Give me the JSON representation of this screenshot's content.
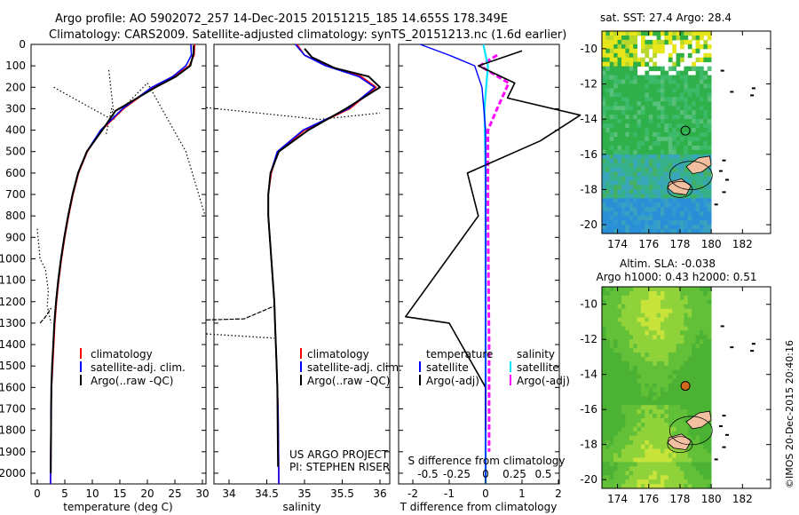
{
  "title": {
    "line1": "Argo profile: AO 5902072_257 14-Dec-2015 20151215_185 14.655S 178.349E",
    "line2": "Climatology: CARS2009. Satellite-adjusted climatology: synTS_20151213.nc (1.6d earlier)"
  },
  "colors": {
    "climatology": "#ff0000",
    "satellite": "#0000ff",
    "argo": "#000000",
    "sal_sat": "#00e5ff",
    "sal_argo": "#ff00ff"
  },
  "depth_axis": {
    "ticks": [
      "0",
      "100",
      "200",
      "300",
      "400",
      "500",
      "600",
      "700",
      "800",
      "900",
      "1000",
      "1100",
      "1200",
      "1300",
      "1400",
      "1500",
      "1600",
      "1700",
      "1800",
      "1900",
      "2000"
    ],
    "range": [
      0,
      2050
    ]
  },
  "temperature_panel": {
    "xlabel": "temperature (deg C)",
    "xticks": [
      "0",
      "5",
      "10",
      "15",
      "20",
      "25",
      "30"
    ],
    "legend": [
      "climatology",
      "satellite-adj. clim.",
      "Argo(..raw -QC)"
    ]
  },
  "salinity_panel": {
    "xlabel": "salinity",
    "xticks": [
      "34",
      "34.5",
      "35",
      "35.5",
      "36"
    ],
    "legend": [
      "climatology",
      "satellite-adj. clim.",
      "Argo(..raw -QC)"
    ],
    "note1": "US ARGO PROJECT",
    "note2": "PI: STEPHEN RISER"
  },
  "difference_panel": {
    "legend_temp_title": "temperature",
    "legend_sal_title": "salinity",
    "legend_temp": [
      "satellite",
      "Argo(-adj)"
    ],
    "legend_sal": [
      "satellite",
      "Argo(-adj)"
    ],
    "s_label": "S difference from climatology",
    "s_ticks": [
      "-0.5",
      "-0.25",
      "0",
      "0.25",
      "0.5"
    ],
    "t_label": "T difference from climatology",
    "t_ticks": [
      "-2",
      "-1",
      "0",
      "1",
      "2"
    ]
  },
  "map_top": {
    "title": "sat. SST: 27.4 Argo: 28.4",
    "yticks": [
      "-10",
      "-12",
      "-14",
      "-16",
      "-18",
      "-20"
    ],
    "xticks": [
      "174",
      "176",
      "178",
      "180",
      "182"
    ]
  },
  "map_bottom": {
    "title1": "Altim. SLA: -0.038",
    "title2": "Argo h1000: 0.43 h2000: 0.51",
    "yticks": [
      "-10",
      "-12",
      "-14",
      "-16",
      "-18",
      "-20"
    ],
    "xticks": [
      "174",
      "176",
      "178",
      "180",
      "182"
    ]
  },
  "stamp": "©IMOS 20-Dec-2015 20:40:16",
  "chart_data": [
    {
      "type": "line",
      "title": "",
      "xlabel": "temperature (deg C)",
      "ylabel": "",
      "xlim": [
        -2,
        32
      ],
      "ylim": [
        2050,
        0
      ],
      "series": [
        {
          "name": "climatology",
          "x": [
            28.6,
            28.5,
            27.6,
            24.8,
            21.0,
            15.7,
            11.7,
            9.1,
            7.5,
            6.5,
            5.7,
            5.0,
            4.4,
            3.9,
            3.5,
            3.2,
            3.0,
            2.8,
            2.6,
            2.5,
            2.4
          ],
          "y": [
            0,
            50,
            100,
            150,
            200,
            300,
            400,
            500,
            600,
            700,
            800,
            900,
            1000,
            1100,
            1200,
            1300,
            1400,
            1500,
            1600,
            1700,
            2050
          ]
        },
        {
          "name": "satellite-adj. clim.",
          "x": [
            27.9,
            28.0,
            27.0,
            24.6,
            20.8,
            15.5,
            11.5,
            9.0,
            7.4,
            6.4,
            5.6,
            4.9,
            4.3,
            3.8,
            3.4,
            3.1,
            2.9,
            2.7,
            2.6,
            2.5,
            2.4
          ],
          "y": [
            0,
            50,
            100,
            150,
            200,
            300,
            400,
            500,
            600,
            700,
            800,
            900,
            1000,
            1100,
            1200,
            1300,
            1400,
            1500,
            1600,
            1700,
            2050
          ]
        },
        {
          "name": "Argo(..raw -QC)",
          "x": [
            28.4,
            28.4,
            27.8,
            25.2,
            21.5,
            14.2,
            11.8,
            9.0,
            7.4,
            6.4,
            5.6,
            4.9,
            4.3,
            3.8,
            3.4,
            3.1,
            2.9,
            2.7,
            2.55,
            2.45
          ],
          "y": [
            5,
            40,
            100,
            150,
            200,
            310,
            400,
            500,
            600,
            700,
            800,
            900,
            1000,
            1100,
            1200,
            1300,
            1400,
            1500,
            1600,
            2000
          ]
        }
      ]
    },
    {
      "type": "line",
      "title": "",
      "xlabel": "salinity",
      "ylabel": "",
      "xlim": [
        33.7,
        36.15
      ],
      "ylim": [
        2050,
        0
      ],
      "series": [
        {
          "name": "climatology",
          "x": [
            34.9,
            35.0,
            35.3,
            35.75,
            35.95,
            35.6,
            35.0,
            34.65,
            34.56,
            34.52,
            34.52,
            34.54,
            34.56,
            34.58,
            34.6,
            34.61,
            34.62,
            34.63,
            34.64,
            34.65,
            34.66
          ],
          "y": [
            0,
            50,
            100,
            150,
            200,
            300,
            400,
            500,
            600,
            700,
            800,
            900,
            1000,
            1100,
            1200,
            1300,
            1400,
            1500,
            1600,
            1700,
            2050
          ]
        },
        {
          "name": "satellite-adj. clim.",
          "x": [
            34.88,
            35.0,
            35.28,
            35.72,
            35.93,
            35.58,
            34.98,
            34.64,
            34.55,
            34.52,
            34.52,
            34.54,
            34.56,
            34.58,
            34.6,
            34.61,
            34.62,
            34.63,
            34.64,
            34.65,
            34.66
          ],
          "y": [
            0,
            50,
            100,
            150,
            200,
            300,
            400,
            500,
            600,
            700,
            800,
            900,
            1000,
            1100,
            1200,
            1300,
            1400,
            1500,
            1600,
            1700,
            2050
          ]
        },
        {
          "name": "Argo(..raw -QC)",
          "x": [
            35.0,
            35.1,
            35.4,
            35.85,
            36.0,
            35.55,
            35.05,
            34.66,
            34.55,
            34.52,
            34.52,
            34.54,
            34.56,
            34.58,
            34.6,
            34.61,
            34.62,
            34.63,
            34.64,
            34.65
          ],
          "y": [
            20,
            60,
            110,
            150,
            200,
            300,
            400,
            500,
            600,
            700,
            800,
            900,
            1000,
            1100,
            1200,
            1300,
            1400,
            1500,
            1600,
            1970
          ]
        }
      ]
    },
    {
      "type": "line",
      "title": "",
      "xlabel": "T difference from climatology",
      "ylabel": "",
      "xlim": [
        -2.5,
        3.2
      ],
      "ylim": [
        2050,
        0
      ],
      "series": [
        {
          "name": "satellite",
          "x": [
            -1.8,
            -1.0,
            -0.3,
            -0.1,
            0.0,
            0.0,
            0.0,
            0.0,
            0.0
          ],
          "y": [
            0,
            50,
            100,
            200,
            400,
            800,
            1200,
            1600,
            2050
          ]
        },
        {
          "name": "Argo(-adj)",
          "x": [
            1.0,
            -0.2,
            0.8,
            0.6,
            2.6,
            1.5,
            -0.5,
            -0.2,
            -2.2,
            -1.0,
            0.0,
            0.0
          ],
          "y": [
            30,
            100,
            180,
            250,
            330,
            450,
            600,
            800,
            1270,
            1300,
            1600,
            1800
          ]
        }
      ]
    },
    {
      "type": "line",
      "title": "",
      "xlabel": "S difference from climatology",
      "ylabel": "",
      "xlim": [
        -0.8,
        0.8
      ],
      "ylim": [
        2050,
        0
      ],
      "series": [
        {
          "name": "satellite",
          "x": [
            -0.02,
            0.02,
            -0.01,
            0.0,
            0.0,
            0.0,
            0.0
          ],
          "y": [
            0,
            100,
            300,
            600,
            1000,
            1500,
            2050
          ]
        },
        {
          "name": "Argo(-adj)",
          "x": [
            0.1,
            -0.05,
            0.2,
            0.1,
            0.02,
            0.02,
            0.03,
            0.03
          ],
          "y": [
            50,
            100,
            180,
            300,
            400,
            800,
            1400,
            1900
          ]
        }
      ]
    }
  ]
}
